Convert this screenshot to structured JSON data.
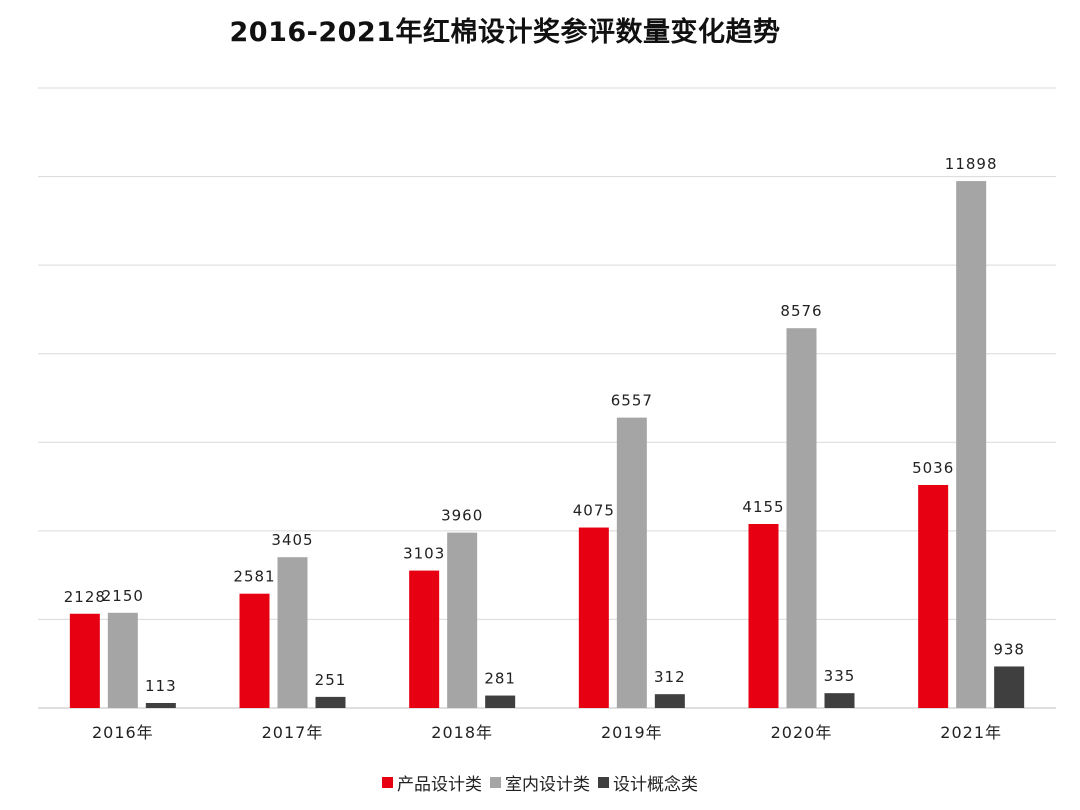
{
  "chart_data": {
    "type": "bar",
    "title": "2016-2021年红棉设计奖参评数量变化趋势",
    "xlabel": "",
    "ylabel": "",
    "categories": [
      "2016年",
      "2017年",
      "2018年",
      "2019年",
      "2020年",
      "2021年"
    ],
    "series": [
      {
        "name": "产品设计类",
        "color": "#e60012",
        "values": [
          2128,
          2581,
          3103,
          4075,
          4155,
          5036
        ]
      },
      {
        "name": "室内设计类",
        "color": "#a5a5a5",
        "values": [
          2150,
          3405,
          3960,
          6557,
          8576,
          11898
        ]
      },
      {
        "name": "设计概念类",
        "color": "#3f3f3f",
        "values": [
          113,
          251,
          281,
          312,
          335,
          938
        ]
      }
    ],
    "ylim": [
      0,
      14000
    ],
    "grid": true,
    "legend_position": "bottom"
  }
}
